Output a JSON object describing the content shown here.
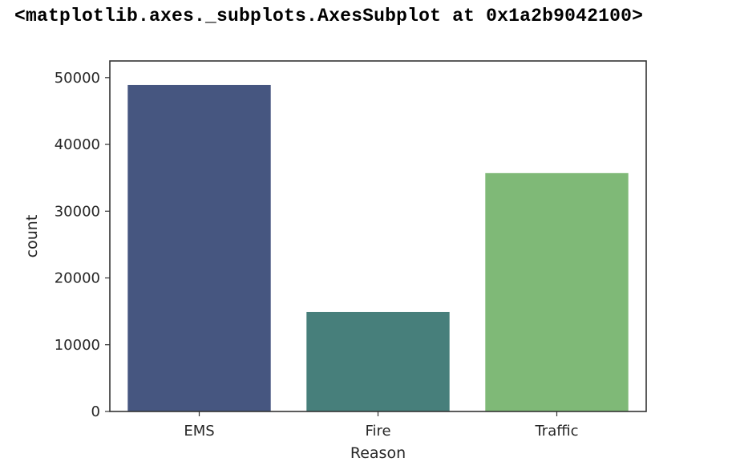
{
  "output": {
    "repr_text": "<matplotlib.axes._subplots.AxesSubplot at 0x1a2b9042100>"
  },
  "chart_data": {
    "type": "bar",
    "categories": [
      "EMS",
      "Fire",
      "Traffic"
    ],
    "values": [
      48900,
      14900,
      35700
    ],
    "colors": [
      "#465680",
      "#477f7b",
      "#7fb977"
    ],
    "xlabel": "Reason",
    "ylabel": "count",
    "ylim": [
      0,
      52500
    ],
    "yticks": [
      0,
      10000,
      20000,
      30000,
      40000,
      50000
    ],
    "grid": false
  }
}
